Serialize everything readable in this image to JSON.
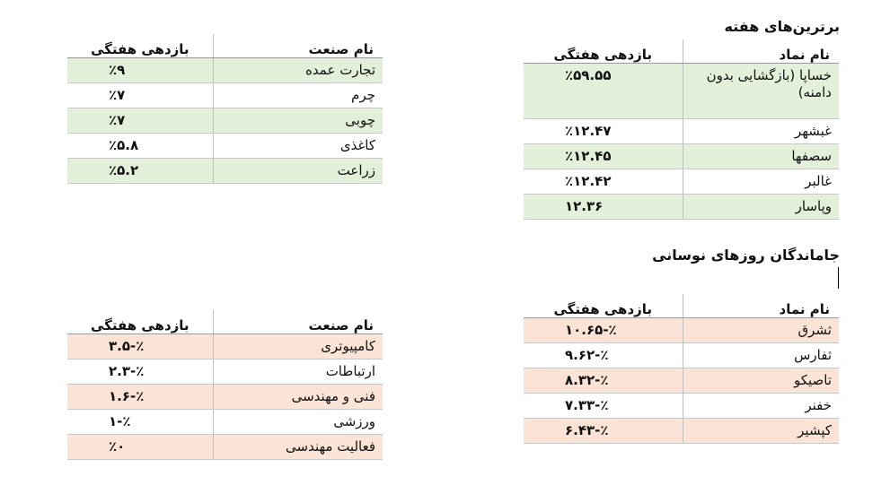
{
  "top_symbols": {
    "heading": "برترین‌های هفته",
    "col_name": "نام نماد",
    "col_return": "بازدهی هفتگی",
    "rows": [
      {
        "name": "خساپا (بازگشایی بدون دامنه)",
        "value": "٪۵۹.۵۵"
      },
      {
        "name": "غبشهر",
        "value": "٪۱۲.۴۷"
      },
      {
        "name": "سصفها",
        "value": "٪۱۲.۴۵"
      },
      {
        "name": "غالبر",
        "value": "٪۱۲.۴۲"
      },
      {
        "name": "وپاسار",
        "value": "۱۲.۳۶"
      }
    ]
  },
  "top_industries": {
    "col_name": "نام صنعت",
    "col_return": "بازدهی هفتگی",
    "rows": [
      {
        "name": "تجارت عمده",
        "value": "٪۹"
      },
      {
        "name": "چرم",
        "value": "٪۷"
      },
      {
        "name": "چوبی",
        "value": "٪۷"
      },
      {
        "name": "کاغذی",
        "value": "٪۵.۸"
      },
      {
        "name": "زراعت",
        "value": "٪۵.۲"
      }
    ]
  },
  "laggard_symbols": {
    "heading": "جاماندگان روزهای نوسانی",
    "col_name": "نام نماد",
    "col_return": "بازدهی هفتگی",
    "rows": [
      {
        "name": "ثشرق",
        "value": "٪-۱۰.۶۵"
      },
      {
        "name": "ثفارس",
        "value": "٪-۹.۶۲"
      },
      {
        "name": "تاصیکو",
        "value": "٪-۸.۳۲"
      },
      {
        "name": "خفنر",
        "value": "٪-۷.۳۳"
      },
      {
        "name": "کپشیر",
        "value": "٪-۶.۴۳"
      }
    ]
  },
  "laggard_industries": {
    "col_name": "نام صنعت",
    "col_return": "بازدهی هفتگی",
    "rows": [
      {
        "name": "کامپیوتری",
        "value": "٪-۳.۵"
      },
      {
        "name": "ارتباطات",
        "value": "٪-۲.۳"
      },
      {
        "name": "فنی و مهندسی",
        "value": "٪-۱.۶"
      },
      {
        "name": "ورزشی",
        "value": "٪-۱"
      },
      {
        "name": "فعالیت مهندسی",
        "value": "٪۰"
      }
    ]
  },
  "colors": {
    "green_row": "#e2efd9",
    "red_row": "#fbe4d5"
  }
}
